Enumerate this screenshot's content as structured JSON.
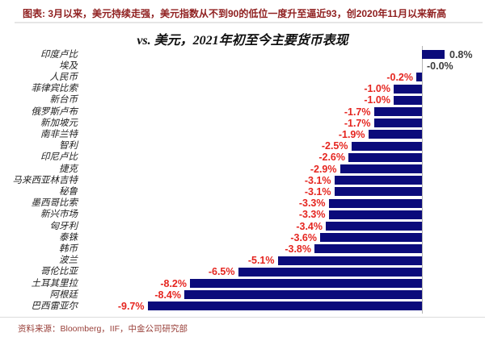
{
  "header": {
    "caption": "图表: 3月以来，美元持续走强，美元指数从不到90的低位一度升至逼近93，创2020年11月以来新高"
  },
  "footer": {
    "source": "资料来源：Bloomberg，IIF，中金公司研究部"
  },
  "chart_data": {
    "type": "bar",
    "orientation": "horizontal",
    "title": "vs. 美元，2021年初至今主要货币表现",
    "value_unit": "%",
    "xlim": [
      -10.5,
      1.5
    ],
    "grid": false,
    "legend": "none",
    "categories": [
      "印度卢比",
      "埃及",
      "人民币",
      "菲律宾比索",
      "新台币",
      "俄罗斯卢布",
      "新加坡元",
      "南非兰特",
      "智利",
      "印尼卢比",
      "捷克",
      "马来西亚林吉特",
      "秘鲁",
      "墨西哥比索",
      "新兴市场",
      "匈牙利",
      "泰铢",
      "韩币",
      "波兰",
      "哥伦比亚",
      "土耳其里拉",
      "阿根廷",
      "巴西雷亚尔"
    ],
    "values": [
      0.8,
      -0.0,
      -0.2,
      -1.0,
      -1.0,
      -1.7,
      -1.7,
      -1.9,
      -2.5,
      -2.6,
      -2.9,
      -3.1,
      -3.1,
      -3.3,
      -3.3,
      -3.4,
      -3.6,
      -3.8,
      -5.1,
      -6.5,
      -8.2,
      -8.4,
      -9.7
    ],
    "value_labels": [
      "0.8%",
      "-0.0%",
      "-0.2%",
      "-1.0%",
      "-1.0%",
      "-1.7%",
      "-1.7%",
      "-1.9%",
      "-2.5%",
      "-2.6%",
      "-2.9%",
      "-3.1%",
      "-3.1%",
      "-3.3%",
      "-3.3%",
      "-3.4%",
      "-3.6%",
      "-3.8%",
      "-5.1%",
      "-6.5%",
      "-8.2%",
      "-8.4%",
      "-9.7%"
    ],
    "bar_color": "#0b0b7b",
    "negative_value_color": "#e52620",
    "positive_value_color": "#3c3c3c",
    "axis_line_color": "#b4b4b4",
    "category_label_color": "#222222"
  }
}
